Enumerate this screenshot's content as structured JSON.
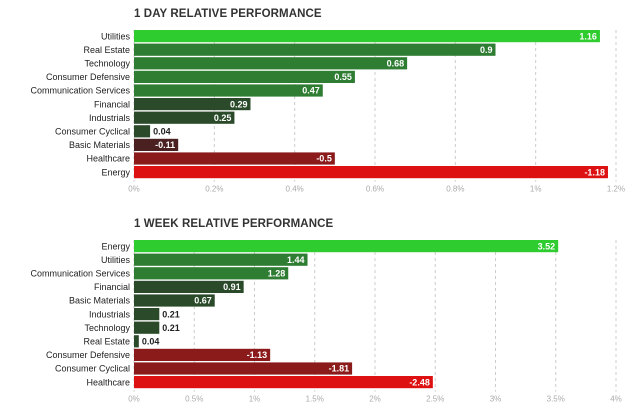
{
  "colors": {
    "pos_dark": "#2a4a2a",
    "pos_mid": "#2e7d32",
    "pos_bright": "#2ecc2e",
    "neg_dark": "#4a2020",
    "neg_mid": "#8b1a1a",
    "neg_bright": "#dd1111",
    "grid": "#cccccc",
    "tick_text": "#aaaaaa"
  },
  "chart_data": [
    {
      "type": "bar",
      "orientation": "horizontal",
      "title": "1 DAY RELATIVE PERFORMANCE",
      "categories": [
        "Utilities",
        "Real Estate",
        "Technology",
        "Consumer Defensive",
        "Communication Services",
        "Financial",
        "Industrials",
        "Consumer Cyclical",
        "Basic Materials",
        "Healthcare",
        "Energy"
      ],
      "values": [
        1.16,
        0.9,
        0.68,
        0.55,
        0.47,
        0.29,
        0.25,
        0.04,
        -0.11,
        -0.5,
        -1.18
      ],
      "value_labels": [
        "1.16",
        "0.9",
        "0.68",
        "0.55",
        "0.47",
        "0.29",
        "0.25",
        "0.04",
        "-0.11",
        "-0.5",
        "-1.18"
      ],
      "xlim": [
        0,
        1.2
      ],
      "x_ticks": [
        0,
        0.2,
        0.4,
        0.6,
        0.8,
        1.0,
        1.2
      ],
      "x_tick_labels": [
        "0%",
        "0.2%",
        "0.4%",
        "0.6%",
        "0.8%",
        "1%",
        "1.2%"
      ],
      "bar_length": "absolute value",
      "grid": true
    },
    {
      "type": "bar",
      "orientation": "horizontal",
      "title": "1 WEEK RELATIVE PERFORMANCE",
      "categories": [
        "Energy",
        "Utilities",
        "Communication Services",
        "Financial",
        "Basic Materials",
        "Industrials",
        "Technology",
        "Real Estate",
        "Consumer Defensive",
        "Consumer Cyclical",
        "Healthcare"
      ],
      "values": [
        3.52,
        1.44,
        1.28,
        0.91,
        0.67,
        0.21,
        0.21,
        0.04,
        -1.13,
        -1.81,
        -2.48
      ],
      "value_labels": [
        "3.52",
        "1.44",
        "1.28",
        "0.91",
        "0.67",
        "0.21",
        "0.21",
        "0.04",
        "-1.13",
        "-1.81",
        "-2.48"
      ],
      "xlim": [
        0,
        4
      ],
      "x_ticks": [
        0,
        0.5,
        1,
        1.5,
        2,
        2.5,
        3,
        3.5,
        4
      ],
      "x_tick_labels": [
        "0%",
        "0.5%",
        "1%",
        "1.5%",
        "2%",
        "2.5%",
        "3%",
        "3.5%",
        "4%"
      ],
      "bar_length": "absolute value",
      "grid": true
    }
  ]
}
